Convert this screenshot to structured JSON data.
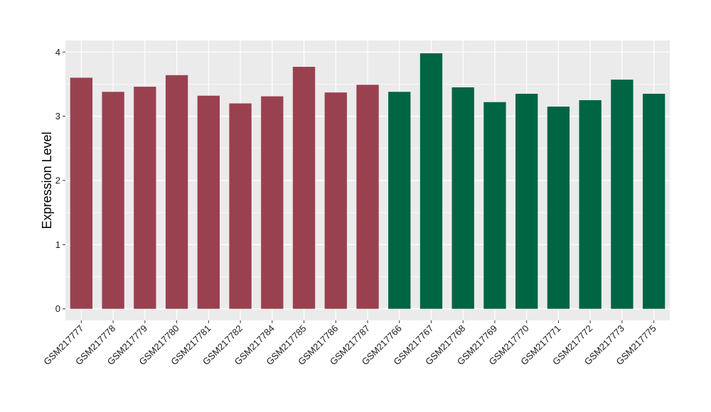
{
  "chart_data": {
    "type": "bar",
    "title": "",
    "xlabel": "",
    "ylabel": "Expression Level",
    "ylim": [
      -0.18,
      4.18
    ],
    "yticks": [
      0,
      1,
      2,
      3,
      4
    ],
    "grid": true,
    "legend": "none",
    "colors": {
      "group_a": "#9a4150",
      "group_b": "#006544",
      "panel_bg": "#ebebeb",
      "grid": "#ffffff"
    },
    "categories": [
      "GSM217777",
      "GSM217778",
      "GSM217779",
      "GSM217780",
      "GSM217781",
      "GSM217782",
      "GSM217784",
      "GSM217785",
      "GSM217786",
      "GSM217787",
      "GSM217766",
      "GSM217767",
      "GSM217768",
      "GSM217769",
      "GSM217770",
      "GSM217771",
      "GSM217772",
      "GSM217773",
      "GSM217775"
    ],
    "values": [
      3.6,
      3.38,
      3.46,
      3.64,
      3.32,
      3.2,
      3.31,
      3.77,
      3.37,
      3.49,
      3.38,
      3.98,
      3.45,
      3.22,
      3.35,
      3.15,
      3.25,
      3.57,
      3.35
    ],
    "groups": [
      "group_a",
      "group_a",
      "group_a",
      "group_a",
      "group_a",
      "group_a",
      "group_a",
      "group_a",
      "group_a",
      "group_a",
      "group_b",
      "group_b",
      "group_b",
      "group_b",
      "group_b",
      "group_b",
      "group_b",
      "group_b",
      "group_b"
    ]
  }
}
